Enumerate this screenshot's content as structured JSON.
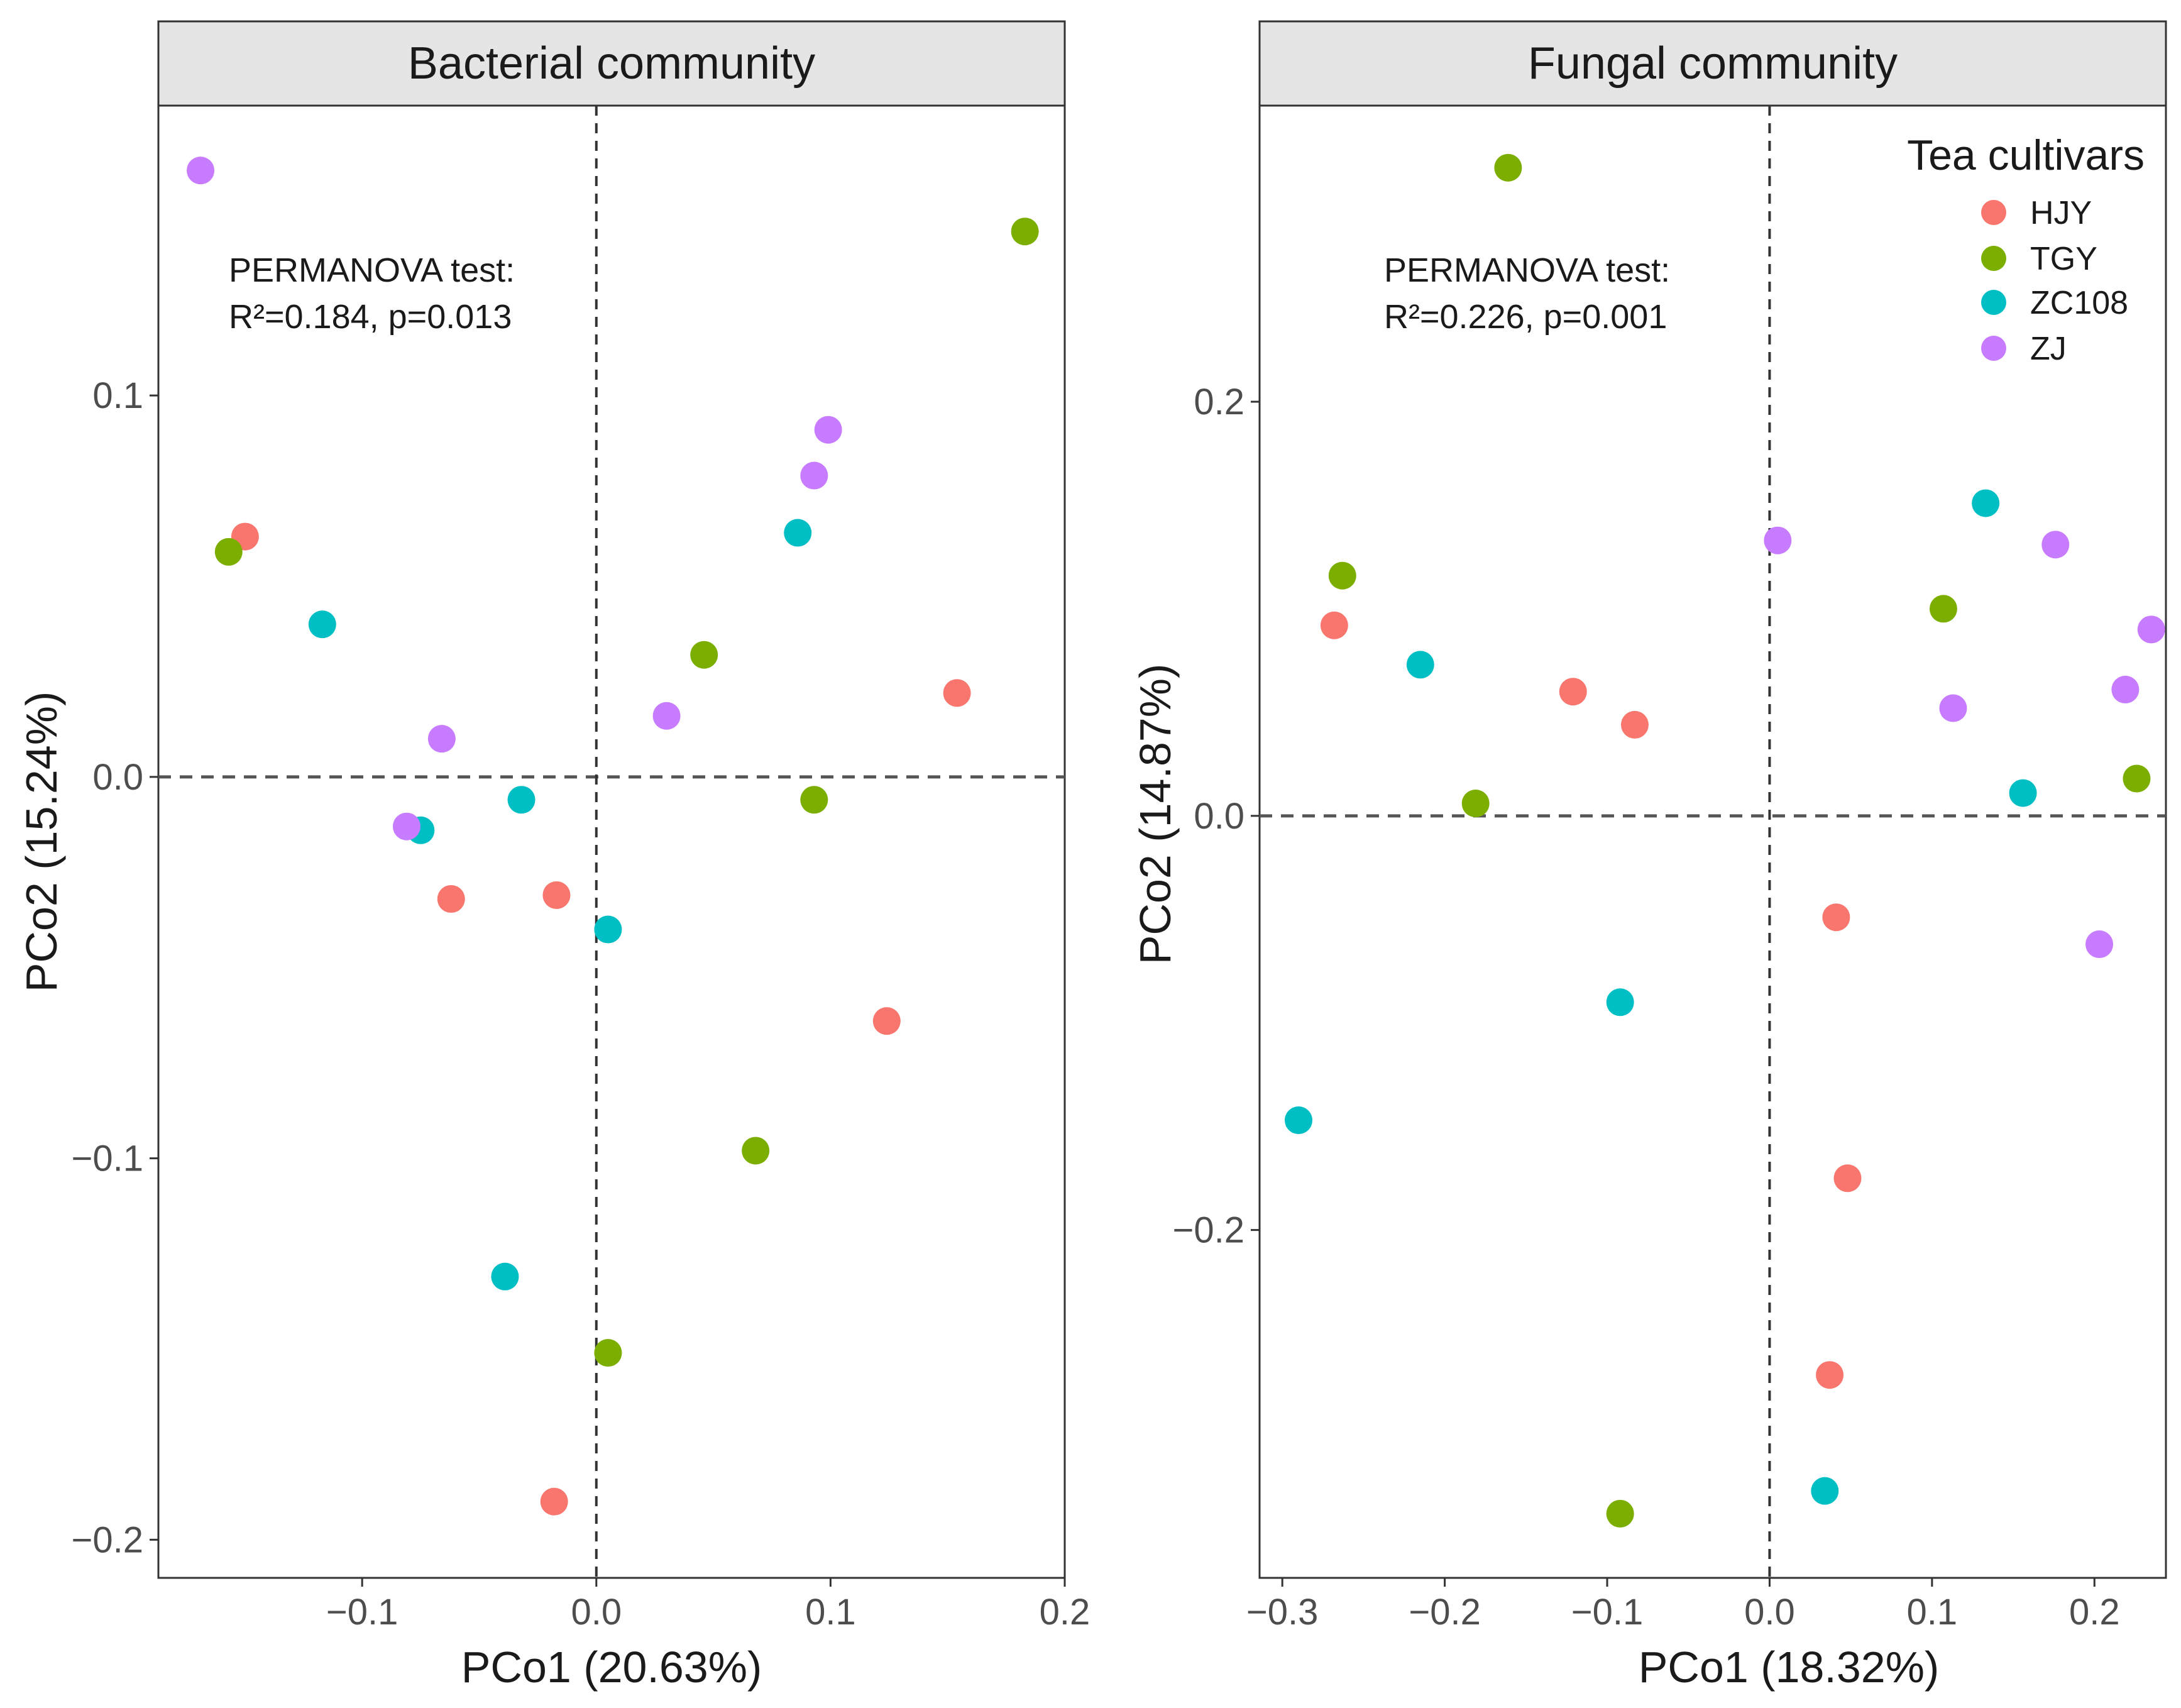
{
  "chart_data": [
    {
      "type": "scatter",
      "title": "Bacterial community",
      "xlabel": "PCo1 (20.63%)",
      "ylabel": "PCo2 (15.24%)",
      "xlim": [
        -0.187,
        0.2
      ],
      "ylim": [
        -0.21,
        0.176
      ],
      "xticks": [
        -0.1,
        0.0,
        0.1,
        0.2
      ],
      "xtick_labels": [
        "−0.1",
        "0.0",
        "0.1",
        "0.2"
      ],
      "yticks": [
        -0.2,
        -0.1,
        0.0,
        0.1
      ],
      "ytick_labels": [
        "−0.2",
        "−0.1",
        "0.0",
        "0.1"
      ],
      "grid": false,
      "reference_lines": {
        "x": 0,
        "y": 0,
        "style": "dashed"
      },
      "annotation": {
        "line1": "PERMANOVA test:",
        "line2": "R²=0.184, p=0.013"
      },
      "series": [
        {
          "name": "HJY",
          "color": "#F8766D",
          "points": [
            [
              -0.15,
              0.063
            ],
            [
              -0.062,
              -0.032
            ],
            [
              -0.017,
              -0.031
            ],
            [
              0.154,
              0.022
            ],
            [
              0.124,
              -0.064
            ],
            [
              -0.018,
              -0.19
            ]
          ]
        },
        {
          "name": "TGY",
          "color": "#7CAE00",
          "points": [
            [
              -0.157,
              0.059
            ],
            [
              0.046,
              0.032
            ],
            [
              0.093,
              -0.006
            ],
            [
              0.068,
              -0.098
            ],
            [
              0.005,
              -0.151
            ],
            [
              0.183,
              0.143
            ]
          ]
        },
        {
          "name": "ZC108",
          "color": "#00BFC4",
          "points": [
            [
              -0.117,
              0.04
            ],
            [
              -0.032,
              -0.006
            ],
            [
              -0.075,
              -0.014
            ],
            [
              0.005,
              -0.04
            ],
            [
              0.086,
              0.064
            ],
            [
              -0.039,
              -0.131
            ]
          ]
        },
        {
          "name": "ZJ",
          "color": "#C77CFF",
          "points": [
            [
              -0.169,
              0.159
            ],
            [
              -0.066,
              0.01
            ],
            [
              -0.081,
              -0.013
            ],
            [
              0.03,
              0.016
            ],
            [
              0.093,
              0.079
            ],
            [
              0.099,
              0.091
            ]
          ]
        }
      ]
    },
    {
      "type": "scatter",
      "title": "Fungal community",
      "xlabel": "PCo1 (18.32%)",
      "ylabel": "PCo2 (14.87%)",
      "xlim": [
        -0.314,
        0.244
      ],
      "ylim": [
        -0.368,
        0.343
      ],
      "xticks": [
        -0.3,
        -0.2,
        -0.1,
        0.0,
        0.1,
        0.2
      ],
      "xtick_labels": [
        "−0.3",
        "−0.2",
        "−0.1",
        "0.0",
        "0.1",
        "0.2"
      ],
      "yticks": [
        -0.2,
        0.0,
        0.2
      ],
      "ytick_labels": [
        "−0.2",
        "0.0",
        "0.2"
      ],
      "grid": false,
      "reference_lines": {
        "x": 0,
        "y": 0,
        "style": "dashed"
      },
      "annotation": {
        "line1": "PERMANOVA test:",
        "line2": "R²=0.226, p=0.001"
      },
      "series": [
        {
          "name": "HJY",
          "color": "#F8766D",
          "points": [
            [
              -0.268,
              0.092
            ],
            [
              -0.121,
              0.06
            ],
            [
              -0.083,
              0.044
            ],
            [
              0.041,
              -0.049
            ],
            [
              0.048,
              -0.175
            ],
            [
              0.037,
              -0.27
            ]
          ]
        },
        {
          "name": "TGY",
          "color": "#7CAE00",
          "points": [
            [
              -0.263,
              0.116
            ],
            [
              -0.181,
              0.006
            ],
            [
              -0.161,
              0.313
            ],
            [
              0.107,
              0.1
            ],
            [
              0.226,
              0.018
            ],
            [
              -0.092,
              -0.337
            ]
          ]
        },
        {
          "name": "ZC108",
          "color": "#00BFC4",
          "points": [
            [
              -0.29,
              -0.147
            ],
            [
              -0.215,
              0.073
            ],
            [
              -0.092,
              -0.09
            ],
            [
              0.133,
              0.151
            ],
            [
              0.156,
              0.011
            ],
            [
              0.034,
              -0.326
            ]
          ]
        },
        {
          "name": "ZJ",
          "color": "#C77CFF",
          "points": [
            [
              0.005,
              0.133
            ],
            [
              0.113,
              0.052
            ],
            [
              0.176,
              0.131
            ],
            [
              0.219,
              0.061
            ],
            [
              0.235,
              0.09
            ],
            [
              0.203,
              -0.062
            ]
          ]
        }
      ]
    }
  ],
  "legend": {
    "title": "Tea cultivars",
    "position": "top-right",
    "entries": [
      {
        "label": "HJY",
        "color": "#F8766D"
      },
      {
        "label": "TGY",
        "color": "#7CAE00"
      },
      {
        "label": "ZC108",
        "color": "#00BFC4"
      },
      {
        "label": "ZJ",
        "color": "#C77CFF"
      }
    ]
  }
}
